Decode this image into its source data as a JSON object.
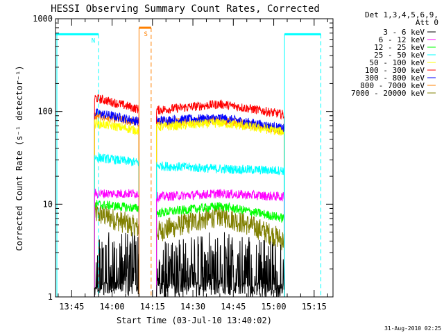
{
  "chart_data": {
    "type": "line",
    "title": "HESSI Observing Summary Count Rates, Corrected",
    "xlabel": "Start Time (03-Jul-10 13:40:02)",
    "ylabel": "Corrected Count Rate (s⁻¹ detector⁻¹)",
    "yscale": "log",
    "ylim": [
      1,
      1000
    ],
    "xlim_minutes": [
      -1,
      102
    ],
    "xticks": [
      {
        "label": "13:45",
        "value": 5
      },
      {
        "label": "14:00",
        "value": 20
      },
      {
        "label": "14:15",
        "value": 35
      },
      {
        "label": "14:30",
        "value": 50
      },
      {
        "label": "14:45",
        "value": 65
      },
      {
        "label": "15:00",
        "value": 80
      },
      {
        "label": "15:15",
        "value": 95
      }
    ],
    "yticks": [
      {
        "label": "1",
        "value": 1
      },
      {
        "label": "10",
        "value": 10
      },
      {
        "label": "100",
        "value": 100
      },
      {
        "label": "1000",
        "value": 1000
      }
    ],
    "legend": {
      "header": [
        "Det 1,3,4,5,6,9,",
        "Att 0"
      ],
      "placement": "right"
    },
    "series": [
      {
        "name": "3 - 6 keV",
        "color": "#000000"
      },
      {
        "name": "6 - 12 keV",
        "color": "#ff00ff"
      },
      {
        "name": "12 - 25 keV",
        "color": "#00ff00"
      },
      {
        "name": "25 - 50 keV",
        "color": "#00ffff"
      },
      {
        "name": "50 - 100 keV",
        "color": "#ffff00"
      },
      {
        "name": "100 - 300 keV",
        "color": "#ff0000"
      },
      {
        "name": "300 - 800 keV",
        "color": "#0000ff"
      },
      {
        "name": "800 - 7000 keV",
        "color": "#ff8000"
      },
      {
        "name": "7000 - 20000 keV",
        "color": "#808000"
      }
    ],
    "segments": [
      {
        "x_start": 13.5,
        "x_end": 30.0
      },
      {
        "x_start": 36.5,
        "x_end": 84.0
      }
    ],
    "levels": [
      {
        "series": "3 - 6 keV",
        "seg1": [
          2.4,
          2.2
        ],
        "seg2": [
          1.8,
          2.3,
          1.7
        ]
      },
      {
        "series": "6 - 12 keV",
        "seg1": [
          13,
          13
        ],
        "seg2": [
          12,
          13,
          12
        ]
      },
      {
        "series": "12 - 25 keV",
        "seg1": [
          10,
          9
        ],
        "seg2": [
          8,
          9.5,
          7
        ]
      },
      {
        "series": "25 - 50 keV",
        "seg1": [
          32,
          28
        ],
        "seg2": [
          26,
          24,
          23
        ]
      },
      {
        "series": "50 - 100 keV",
        "seg1": [
          75,
          62
        ],
        "seg2": [
          68,
          75,
          60
        ]
      },
      {
        "series": "100 - 300 keV",
        "seg1": [
          140,
          105
        ],
        "seg2": [
          103,
          120,
          92
        ]
      },
      {
        "series": "300 - 800 keV",
        "seg1": [
          97,
          78
        ],
        "seg2": [
          80,
          85,
          65
        ]
      },
      {
        "series": "800 - 7000 keV",
        "seg1": [
          90,
          75
        ],
        "seg2": [
          76,
          80,
          62
        ]
      },
      {
        "series": "7000 - 20000 keV",
        "seg1": [
          8,
          5.5
        ],
        "seg2": [
          5,
          7.5,
          4
        ]
      }
    ],
    "flags": [
      {
        "label": "N",
        "color": "#00ffff",
        "x_start": -1,
        "x_end": 15.0,
        "value": 680,
        "marker_x": 15.0
      },
      {
        "label": "S",
        "color": "#ff8000",
        "x_start": 30.0,
        "x_end": 34.5,
        "value": 800,
        "marker_x": 34.5
      },
      {
        "label": "",
        "color": "#00ffff",
        "x_start": 84.0,
        "x_end": 97.5,
        "value": 680,
        "marker_x": 97.5
      }
    ],
    "footer_date": "31-Aug-2010 02:25"
  }
}
